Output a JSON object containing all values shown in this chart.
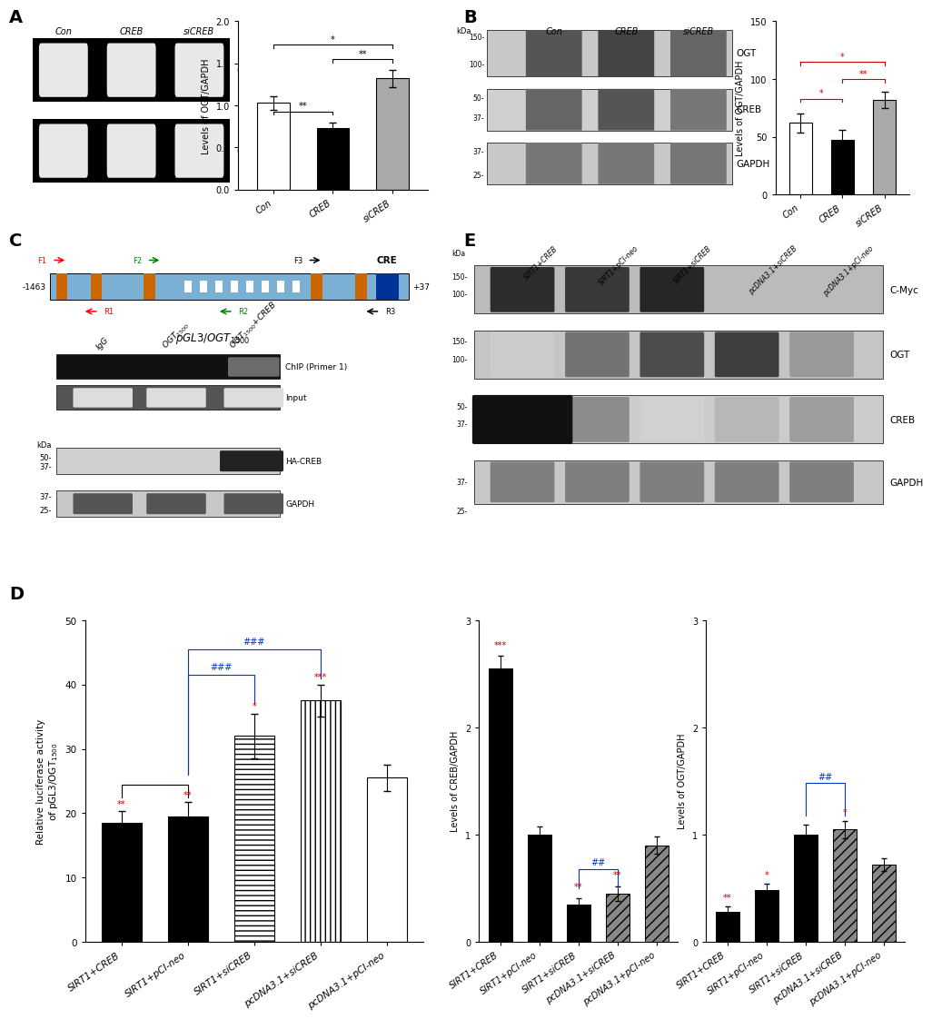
{
  "panel_A_bar": {
    "categories": [
      "Con",
      "CREB",
      "siCREB"
    ],
    "values": [
      1.03,
      0.73,
      1.32
    ],
    "errors": [
      0.08,
      0.07,
      0.1
    ],
    "colors": [
      "white",
      "black",
      "#888888"
    ],
    "ylabel": "Levels of OGT/GAPDH",
    "ylim": [
      0.0,
      2.0
    ],
    "yticks": [
      0.0,
      0.5,
      1.0,
      1.5,
      2.0
    ]
  },
  "panel_B_bar": {
    "categories": [
      "Con",
      "CREB",
      "siCREB"
    ],
    "values": [
      62,
      47,
      82
    ],
    "errors": [
      8,
      9,
      7
    ],
    "colors": [
      "white",
      "black",
      "#888888"
    ],
    "ylabel": "Levels of OGT/GAPDH",
    "ylim": [
      0,
      150
    ],
    "yticks": [
      0,
      50,
      100,
      150
    ]
  },
  "panel_D_bar": {
    "categories": [
      "SIRT1+CREB",
      "SIRT1+pCI-neo",
      "SIRT1+siCREB",
      "pcDNA3.1+siCREB",
      "pcDNA3.1+pCI-neo"
    ],
    "values": [
      18.5,
      19.5,
      32.0,
      37.5,
      25.5
    ],
    "errors": [
      1.8,
      2.2,
      3.5,
      2.5,
      2.0
    ],
    "ylabel": "Relative luciferase activity\nof pGL3/OGT$_{1500}$",
    "ylim": [
      0,
      50
    ],
    "yticks": [
      0,
      10,
      20,
      30,
      40,
      50
    ],
    "star_labels": [
      "**",
      "**",
      "*",
      "***",
      ""
    ]
  },
  "panel_E_CREB_bar": {
    "categories": [
      "SIRT1+CREB",
      "SIRT1+pCI-neo",
      "SIRT1+siCREB",
      "pcDNA3.1+siCREB",
      "pcDNA3.1+pCI-neo"
    ],
    "values": [
      2.55,
      1.0,
      0.35,
      0.45,
      0.9
    ],
    "errors": [
      0.12,
      0.08,
      0.06,
      0.07,
      0.08
    ],
    "ylabel": "Levels of CREB/GAPDH",
    "ylim": [
      0,
      3
    ],
    "yticks": [
      0,
      1,
      2,
      3
    ],
    "star_labels": [
      "***",
      "",
      "",
      "",
      ""
    ]
  },
  "panel_E_OGT_bar": {
    "categories": [
      "SIRT1+CREB",
      "SIRT1+pCI-neo",
      "SIRT1+siCREB",
      "pcDNA3.1+siCREB",
      "pcDNA3.1+pCI-neo"
    ],
    "values": [
      0.28,
      0.48,
      1.0,
      1.05,
      0.72
    ],
    "errors": [
      0.05,
      0.06,
      0.09,
      0.08,
      0.06
    ],
    "ylabel": "Levels of OGT/GAPDH",
    "ylim": [
      0,
      3
    ],
    "yticks": [
      0,
      1,
      2,
      3
    ],
    "star_labels": [
      "**",
      "*",
      "",
      "*",
      ""
    ]
  },
  "bg_color": "#ffffff",
  "red": "#cc0000",
  "blue": "#0033cc"
}
